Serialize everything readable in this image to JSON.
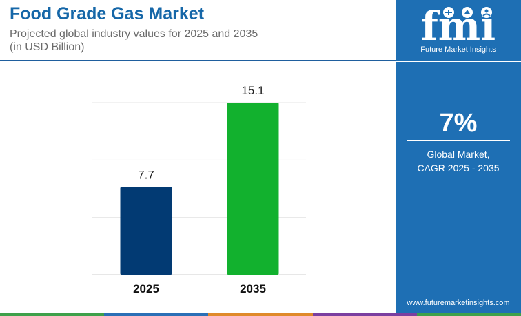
{
  "header": {
    "title": "Food Grade Gas Market",
    "subtitle": "Projected global industry values for 2025 and 2035\n(in USD Billion)"
  },
  "chart_data": {
    "type": "bar",
    "categories": [
      "2025",
      "2035"
    ],
    "values": [
      7.7,
      15.1
    ],
    "data_labels": [
      "7.7",
      "15.1"
    ],
    "title": "",
    "xlabel": "",
    "ylabel": "",
    "ylim": [
      0,
      15.1
    ],
    "grid": true,
    "bar_colors": [
      "#023a73",
      "#12b12e"
    ]
  },
  "sidebar": {
    "logo_text": "fmi",
    "logo_caption": "Future Market Insights",
    "cagr_value": "7%",
    "cagr_label": "Global Market,\nCAGR 2025 - 2035",
    "url": "www.futuremarketinsights.com"
  },
  "colors": {
    "title": "#1667a8",
    "panel": "#1e6fb4",
    "stripe": [
      "#3ea04a",
      "#2b6fb6",
      "#e08a2a",
      "#7b3fa0",
      "#3ea04a"
    ]
  }
}
